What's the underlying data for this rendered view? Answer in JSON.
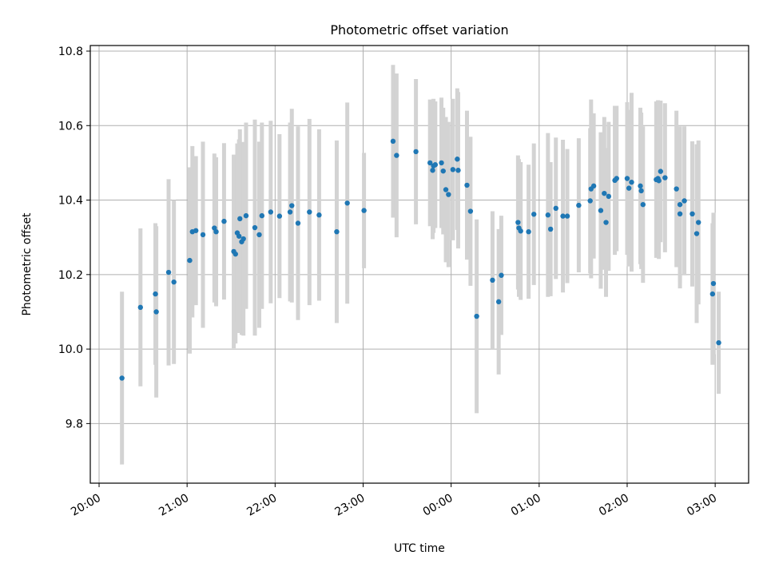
{
  "chart_data": {
    "type": "scatter",
    "title": "Photometric offset variation",
    "xlabel": "UTC time",
    "ylabel": "Photometric offset",
    "x_unit": "hours since 20:00 UTC",
    "xlim": [
      -0.1,
      7.38
    ],
    "ylim": [
      9.64,
      10.815
    ],
    "xticks": [
      {
        "label": "20:00",
        "value": 0
      },
      {
        "label": "21:00",
        "value": 1
      },
      {
        "label": "22:00",
        "value": 2
      },
      {
        "label": "23:00",
        "value": 3
      },
      {
        "label": "00:00",
        "value": 4
      },
      {
        "label": "01:00",
        "value": 5
      },
      {
        "label": "02:00",
        "value": 6
      },
      {
        "label": "03:00",
        "value": 7
      }
    ],
    "yticks": [
      {
        "label": "9.8",
        "value": 9.8
      },
      {
        "label": "10.0",
        "value": 10.0
      },
      {
        "label": "10.2",
        "value": 10.2
      },
      {
        "label": "10.4",
        "value": 10.4
      },
      {
        "label": "10.6",
        "value": 10.6
      },
      {
        "label": "10.8",
        "value": 10.8
      }
    ],
    "grid": true,
    "marker_color": "#1f77b4",
    "errorbar_color": "#d3d3d3",
    "points": [
      [
        0.26,
        9.922,
        0.232
      ],
      [
        0.47,
        10.112,
        0.212
      ],
      [
        0.64,
        10.148,
        0.19
      ],
      [
        0.65,
        10.1,
        0.23
      ],
      [
        0.79,
        10.206,
        0.25
      ],
      [
        0.85,
        10.18,
        0.22
      ],
      [
        1.03,
        10.238,
        0.25
      ],
      [
        1.06,
        10.315,
        0.23
      ],
      [
        1.1,
        10.318,
        0.2
      ],
      [
        1.18,
        10.307,
        0.25
      ],
      [
        1.31,
        10.325,
        0.2
      ],
      [
        1.33,
        10.315,
        0.2
      ],
      [
        1.42,
        10.343,
        0.21
      ],
      [
        1.53,
        10.262,
        0.26
      ],
      [
        1.55,
        10.255,
        0.24
      ],
      [
        1.57,
        10.312,
        0.24
      ],
      [
        1.59,
        10.303,
        0.26
      ],
      [
        1.6,
        10.35,
        0.24
      ],
      [
        1.62,
        10.288,
        0.25
      ],
      [
        1.64,
        10.296,
        0.26
      ],
      [
        1.67,
        10.358,
        0.25
      ],
      [
        1.77,
        10.326,
        0.29
      ],
      [
        1.82,
        10.307,
        0.25
      ],
      [
        1.85,
        10.358,
        0.25
      ],
      [
        1.95,
        10.368,
        0.245
      ],
      [
        2.05,
        10.357,
        0.22
      ],
      [
        2.17,
        10.368,
        0.24
      ],
      [
        2.19,
        10.385,
        0.26
      ],
      [
        2.26,
        10.338,
        0.26
      ],
      [
        2.39,
        10.368,
        0.25
      ],
      [
        2.5,
        10.36,
        0.23
      ],
      [
        2.7,
        10.315,
        0.245
      ],
      [
        2.82,
        10.392,
        0.27
      ],
      [
        3.01,
        10.372,
        0.155
      ],
      [
        3.34,
        10.558,
        0.205
      ],
      [
        3.38,
        10.52,
        0.22
      ],
      [
        3.6,
        10.53,
        0.195
      ],
      [
        3.76,
        10.5,
        0.17
      ],
      [
        3.79,
        10.48,
        0.185
      ],
      [
        3.8,
        10.492,
        0.18
      ],
      [
        3.82,
        10.495,
        0.17
      ],
      [
        3.89,
        10.5,
        0.175
      ],
      [
        3.91,
        10.478,
        0.17
      ],
      [
        3.94,
        10.428,
        0.195
      ],
      [
        3.97,
        10.415,
        0.195
      ],
      [
        4.02,
        10.482,
        0.19
      ],
      [
        4.07,
        10.51,
        0.19
      ],
      [
        4.08,
        10.48,
        0.21
      ],
      [
        4.18,
        10.44,
        0.2
      ],
      [
        4.22,
        10.37,
        0.2
      ],
      [
        4.29,
        10.088,
        0.26
      ],
      [
        4.47,
        10.185,
        0.185
      ],
      [
        4.54,
        10.127,
        0.195
      ],
      [
        4.57,
        10.198,
        0.16
      ],
      [
        4.76,
        10.34,
        0.18
      ],
      [
        4.77,
        10.325,
        0.185
      ],
      [
        4.79,
        10.317,
        0.185
      ],
      [
        4.88,
        10.315,
        0.18
      ],
      [
        4.94,
        10.362,
        0.19
      ],
      [
        5.1,
        10.36,
        0.22
      ],
      [
        5.13,
        10.322,
        0.18
      ],
      [
        5.19,
        10.378,
        0.19
      ],
      [
        5.27,
        10.357,
        0.205
      ],
      [
        5.32,
        10.357,
        0.18
      ],
      [
        5.45,
        10.386,
        0.18
      ],
      [
        5.58,
        10.398,
        0.195
      ],
      [
        5.59,
        10.43,
        0.24
      ],
      [
        5.62,
        10.438,
        0.195
      ],
      [
        5.7,
        10.372,
        0.21
      ],
      [
        5.74,
        10.418,
        0.205
      ],
      [
        5.76,
        10.34,
        0.2
      ],
      [
        5.79,
        10.41,
        0.2
      ],
      [
        5.86,
        10.453,
        0.2
      ],
      [
        5.88,
        10.458,
        0.195
      ],
      [
        6.0,
        10.458,
        0.205
      ],
      [
        6.02,
        10.432,
        0.21
      ],
      [
        6.05,
        10.448,
        0.24
      ],
      [
        6.15,
        10.438,
        0.21
      ],
      [
        6.16,
        10.425,
        0.21
      ],
      [
        6.18,
        10.388,
        0.21
      ],
      [
        6.33,
        10.455,
        0.21
      ],
      [
        6.35,
        10.458,
        0.21
      ],
      [
        6.36,
        10.452,
        0.21
      ],
      [
        6.38,
        10.477,
        0.19
      ],
      [
        6.43,
        10.46,
        0.2
      ],
      [
        6.56,
        10.43,
        0.21
      ],
      [
        6.6,
        10.388,
        0.21
      ],
      [
        6.6,
        10.363,
        0.2
      ],
      [
        6.65,
        10.398,
        0.2
      ],
      [
        6.74,
        10.363,
        0.195
      ],
      [
        6.79,
        10.31,
        0.24
      ],
      [
        6.81,
        10.34,
        0.22
      ],
      [
        6.97,
        10.148,
        0.19
      ],
      [
        6.98,
        10.176,
        0.19
      ],
      [
        7.04,
        10.017,
        0.137
      ]
    ]
  }
}
